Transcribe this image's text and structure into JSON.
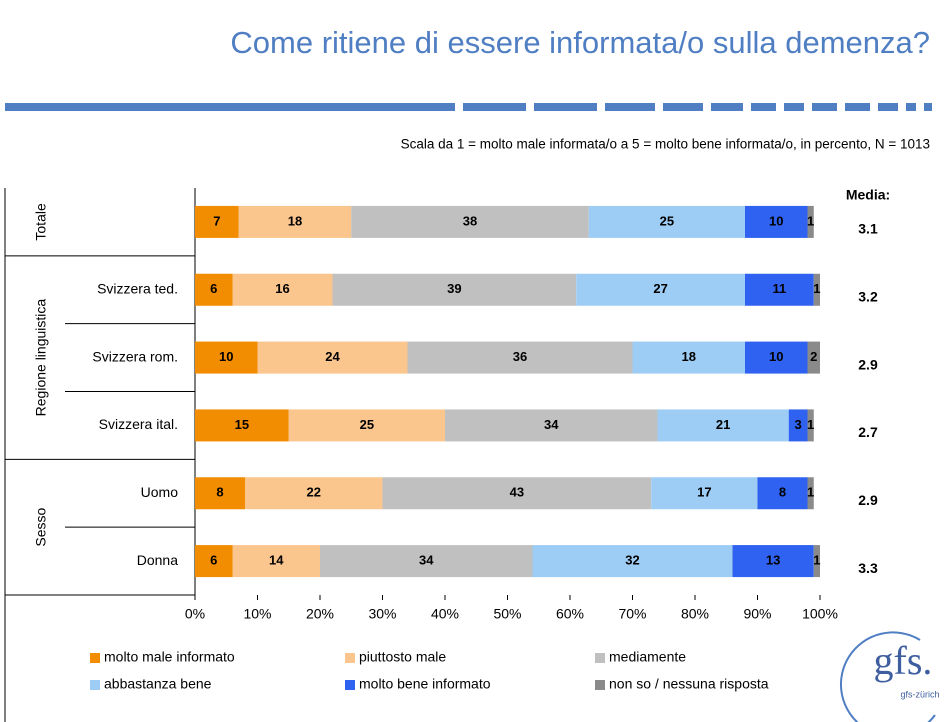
{
  "chart_data": {
    "type": "stacked_barh",
    "title": "Come ritiene di essere informata/o sulla demenza?",
    "subtitle": "Scala da 1 = molto male informata/o a 5 = molto bene informata/o, in percento, N = 1013",
    "groups": [
      "Totale",
      "Regione linguistica",
      "Sesso"
    ],
    "categories": [
      null,
      "Svizzera ted.",
      "Svizzera rom.",
      "Svizzera ital.",
      "Uomo",
      "Donna"
    ],
    "series": [
      {
        "name": "molto male informato",
        "color": "#f28c00",
        "values": [
          7,
          6,
          10,
          15,
          8,
          6
        ]
      },
      {
        "name": "piuttosto male",
        "color": "#fbc58e",
        "values": [
          18,
          16,
          24,
          25,
          22,
          14
        ]
      },
      {
        "name": "mediamente",
        "color": "#c0c0c0",
        "values": [
          38,
          39,
          36,
          34,
          43,
          34
        ]
      },
      {
        "name": "abbastanza bene",
        "color": "#9dcdf5",
        "values": [
          25,
          27,
          18,
          21,
          17,
          32
        ]
      },
      {
        "name": "molto bene informato",
        "color": "#2f62f0",
        "values": [
          10,
          11,
          10,
          3,
          8,
          13
        ]
      },
      {
        "name": "non so / nessuna risposta",
        "color": "#8a8a8a",
        "values": [
          1,
          1,
          2,
          1,
          1,
          1
        ]
      }
    ],
    "means_title": "Media:",
    "means": [
      3.1,
      3.2,
      2.9,
      2.7,
      2.9,
      3.3
    ],
    "xlim": [
      0,
      100
    ],
    "xticks": [
      {
        "value": 0,
        "label": "0%"
      },
      {
        "value": 10,
        "label": "10%"
      },
      {
        "value": 20,
        "label": "20%"
      },
      {
        "value": 30,
        "label": "30%"
      },
      {
        "value": 40,
        "label": "40%"
      },
      {
        "value": 50,
        "label": "50%"
      },
      {
        "value": 60,
        "label": "60%"
      },
      {
        "value": 70,
        "label": "70%"
      },
      {
        "value": 80,
        "label": "80%"
      },
      {
        "value": 90,
        "label": "90%"
      },
      {
        "value": 100,
        "label": "100%"
      }
    ],
    "logo": {
      "name": "gfs.",
      "sub": "gfs-zürich"
    }
  }
}
